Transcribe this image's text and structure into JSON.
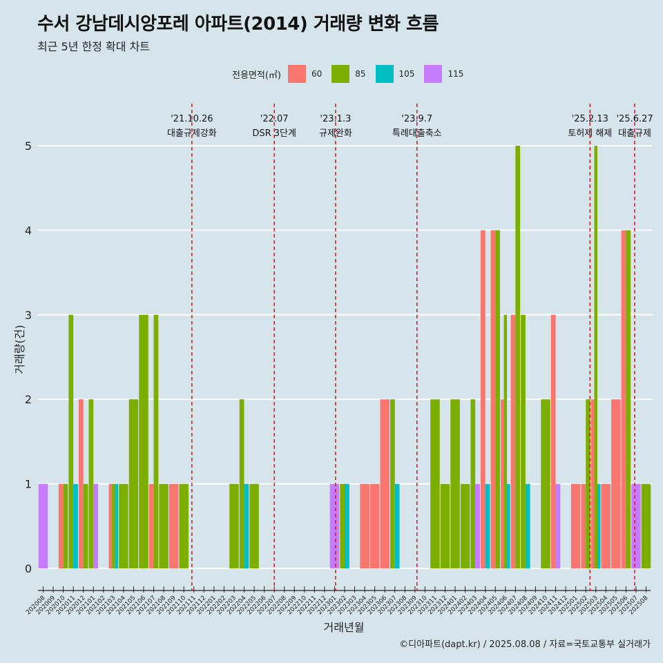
{
  "title": "수서 강남데시앙포레 아파트(2014) 거래량 변화 흐름",
  "subtitle": "최근 5년 한정 확대 차트",
  "legend": {
    "title": "전용면적(㎡)",
    "items": [
      {
        "label": "60",
        "color": "#F8766D"
      },
      {
        "label": "85",
        "color": "#7CAE00"
      },
      {
        "label": "105",
        "color": "#00BFC4"
      },
      {
        "label": "115",
        "color": "#C77CFF"
      }
    ]
  },
  "caption": "©디아파트(dapt.kr) / 2025.08.08 / 자료=국토교통부 실거래가",
  "chart_data": {
    "type": "bar",
    "xlabel": "거래년월",
    "ylabel": "거래량(건)",
    "ylim": [
      0,
      5
    ],
    "yticks": [
      0,
      1,
      2,
      3,
      4,
      5
    ],
    "grid": true,
    "legend_position": "top",
    "categories": [
      "202008",
      "202009",
      "202010",
      "202011",
      "202012",
      "202101",
      "202102",
      "202103",
      "202104",
      "202105",
      "202106",
      "202107",
      "202108",
      "202109",
      "202110",
      "202111",
      "202112",
      "202201",
      "202202",
      "202203",
      "202204",
      "202205",
      "202206",
      "202207",
      "202208",
      "202209",
      "202210",
      "202211",
      "202212",
      "202301",
      "202302",
      "202303",
      "202304",
      "202305",
      "202306",
      "202307",
      "202308",
      "202309",
      "202310",
      "202311",
      "202312",
      "202401",
      "202402",
      "202403",
      "202404",
      "202405",
      "202406",
      "202407",
      "202408",
      "202409",
      "202410",
      "202411",
      "202412",
      "202501",
      "202502",
      "202503",
      "202504",
      "202505",
      "202506",
      "202507",
      "202508"
    ],
    "series": [
      {
        "name": "60",
        "color": "#F8766D",
        "values": [
          0,
          0,
          1,
          0,
          2,
          0,
          0,
          1,
          0,
          0,
          0,
          1,
          0,
          1,
          0,
          0,
          0,
          0,
          0,
          0,
          0,
          0,
          0,
          0,
          0,
          0,
          0,
          0,
          0,
          0,
          0,
          0,
          1,
          1,
          2,
          0,
          0,
          0,
          0,
          0,
          0,
          0,
          0,
          0,
          4,
          4,
          2,
          3,
          0,
          0,
          0,
          3,
          0,
          1,
          1,
          2,
          1,
          2,
          4,
          0,
          0
        ]
      },
      {
        "name": "85",
        "color": "#7CAE00",
        "values": [
          0,
          0,
          1,
          3,
          1,
          2,
          0,
          1,
          1,
          2,
          3,
          3,
          1,
          0,
          1,
          0,
          0,
          0,
          0,
          1,
          2,
          1,
          0,
          0,
          0,
          0,
          0,
          0,
          0,
          0,
          1,
          0,
          0,
          0,
          0,
          2,
          0,
          0,
          0,
          2,
          1,
          2,
          1,
          2,
          0,
          4,
          3,
          5,
          3,
          0,
          2,
          0,
          0,
          0,
          2,
          5,
          0,
          0,
          4,
          0,
          1
        ]
      },
      {
        "name": "105",
        "color": "#00BFC4",
        "values": [
          0,
          0,
          0,
          1,
          0,
          0,
          0,
          1,
          0,
          0,
          0,
          0,
          0,
          0,
          0,
          0,
          0,
          0,
          0,
          0,
          1,
          0,
          0,
          0,
          0,
          0,
          0,
          0,
          0,
          0,
          1,
          0,
          0,
          0,
          0,
          1,
          0,
          0,
          0,
          0,
          0,
          0,
          0,
          0,
          1,
          0,
          1,
          0,
          1,
          0,
          0,
          0,
          0,
          0,
          0,
          1,
          0,
          0,
          0,
          0,
          0
        ]
      },
      {
        "name": "115",
        "color": "#C77CFF",
        "values": [
          1,
          0,
          0,
          0,
          0,
          1,
          0,
          0,
          0,
          0,
          0,
          0,
          0,
          0,
          0,
          0,
          0,
          0,
          0,
          0,
          0,
          0,
          0,
          0,
          0,
          0,
          0,
          0,
          0,
          1,
          0,
          0,
          0,
          0,
          0,
          0,
          0,
          0,
          0,
          0,
          0,
          0,
          0,
          1,
          0,
          0,
          0,
          0,
          0,
          0,
          0,
          1,
          0,
          0,
          0,
          0,
          0,
          0,
          0,
          1,
          0
        ]
      }
    ],
    "annotations": [
      {
        "date": "'21.10.26",
        "text": "대출규제강화",
        "category": "202110",
        "offset": 0.8
      },
      {
        "date": "'22.07",
        "text": "DSR 3단계",
        "category": "202207",
        "offset": 0
      },
      {
        "date": "'23.1.3",
        "text": "규제완화",
        "category": "202301",
        "offset": 0.1
      },
      {
        "date": "'23.9.7",
        "text": "특례대출축소",
        "category": "202309",
        "offset": 0.2
      },
      {
        "date": "'25.2.13",
        "text": "토허제 해제",
        "category": "202502",
        "offset": 0.42
      },
      {
        "date": "'25.6.27",
        "text": "대출규제",
        "category": "202506",
        "offset": 0.87
      }
    ]
  }
}
